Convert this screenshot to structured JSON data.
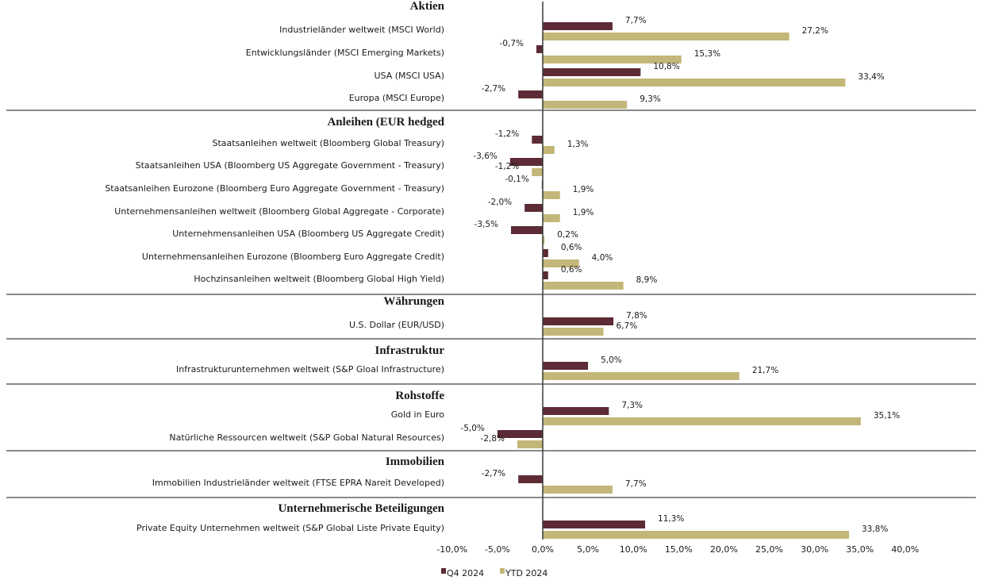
{
  "chart_data": {
    "type": "bar",
    "orientation": "horizontal",
    "xlim": [
      -10,
      40
    ],
    "x_ticks": [
      "-10,0%",
      "-5,0%",
      "0,0%",
      "5,0%",
      "10,0%",
      "15,0%",
      "20,0%",
      "25,0%",
      "30,0%",
      "35,0%",
      "40,0%"
    ],
    "x_tick_values": [
      -10,
      -5,
      0,
      5,
      10,
      15,
      20,
      25,
      30,
      35,
      40
    ],
    "grid": false,
    "legend_position": "bottom",
    "series": [
      {
        "name": "Q4 2024",
        "color": "#5c2b35"
      },
      {
        "name": "YTD 2024",
        "color": "#c2b778"
      }
    ],
    "groups": [
      {
        "title": "Aktien",
        "items": [
          {
            "label": "Industrieländer weltweit (MSCI World)",
            "q4": 7.7,
            "ytd": 27.2,
            "q4_label": "7,7%",
            "ytd_label": "27,2%"
          },
          {
            "label": "Entwicklungsländer (MSCI Emerging Markets)",
            "q4": -0.7,
            "ytd": 15.3,
            "q4_label": "-0,7%",
            "ytd_label": "15,3%"
          },
          {
            "label": "USA (MSCI USA)",
            "q4": 10.8,
            "ytd": 33.4,
            "q4_label": "10,8%",
            "ytd_label": "33,4%"
          },
          {
            "label": "Europa (MSCI Europe)",
            "q4": -2.7,
            "ytd": 9.3,
            "q4_label": "-2,7%",
            "ytd_label": "9,3%"
          }
        ]
      },
      {
        "title": "Anleihen (EUR hedged",
        "items": [
          {
            "label": "Staatsanleihen weltweit (Bloomberg Global Treasury)",
            "q4": -1.2,
            "ytd": 1.3,
            "q4_label": "-1,2%",
            "ytd_label": "1,3%"
          },
          {
            "label": "Staatsanleihen USA (Bloomberg US Aggregate Government - Treasury)",
            "q4": -3.6,
            "ytd": -1.2,
            "q4_label": "-3,6%",
            "ytd_label": "-1,2%"
          },
          {
            "label": "Staatsanleihen Eurozone (Bloomberg Euro Aggregate Government - Treasury)",
            "q4": -0.1,
            "ytd": 1.9,
            "q4_label": "-0,1%",
            "ytd_label": "1,9%"
          },
          {
            "label": "Unternehmensanleihen weltweit (Bloomberg Global Aggregate - Corporate)",
            "q4": -2.0,
            "ytd": 1.9,
            "q4_label": "-2,0%",
            "ytd_label": "1,9%"
          },
          {
            "label": "Unternehmensanleihen USA (Bloomberg US Aggregate Credit)",
            "q4": -3.5,
            "ytd": 0.2,
            "q4_label": "-3,5%",
            "ytd_label": "0,2%"
          },
          {
            "label": "Unternehmensanleihen Eurozone (Bloomberg Euro Aggregate Credit)",
            "q4": 0.6,
            "ytd": 4.0,
            "q4_label": "0,6%",
            "ytd_label": "4,0%"
          },
          {
            "label": "Hochzinsanleihen weltweit (Bloomberg Global High Yield)",
            "q4": 0.6,
            "ytd": 8.9,
            "q4_label": "0,6%",
            "ytd_label": "8,9%"
          }
        ]
      },
      {
        "title": "Währungen",
        "items": [
          {
            "label": "U.S. Dollar (EUR/USD)",
            "q4": 7.8,
            "ytd": 6.7,
            "q4_label": "7,8%",
            "ytd_label": "6,7%"
          }
        ]
      },
      {
        "title": "Infrastruktur",
        "items": [
          {
            "label": "Infrastrukturunternehmen weltweit (S&P Gloal Infrastructure)",
            "q4": 5.0,
            "ytd": 21.7,
            "q4_label": "5,0%",
            "ytd_label": "21,7%"
          }
        ]
      },
      {
        "title": "Rohstoffe",
        "items": [
          {
            "label": "Gold in Euro",
            "q4": 7.3,
            "ytd": 35.1,
            "q4_label": "7,3%",
            "ytd_label": "35,1%"
          },
          {
            "label": "Natürliche Ressourcen weltweit (S&P Gobal Natural Resources)",
            "q4": -5.0,
            "ytd": -2.8,
            "q4_label": "-5,0%",
            "ytd_label": "-2,8%"
          }
        ]
      },
      {
        "title": "Immobilien",
        "items": [
          {
            "label": "Immobilien Industrieländer weltweit (FTSE EPRA Nareit Developed)",
            "q4": -2.7,
            "ytd": 7.7,
            "q4_label": "-2,7%",
            "ytd_label": "7,7%"
          }
        ]
      },
      {
        "title": "Unternehmerische Beteiligungen",
        "items": [
          {
            "label": "Private Equity Unternehmen weltweit (S&P Global Liste Private Equity)",
            "q4": 11.3,
            "ytd": 33.8,
            "q4_label": "11,3%",
            "ytd_label": "33,8%"
          }
        ]
      }
    ]
  }
}
